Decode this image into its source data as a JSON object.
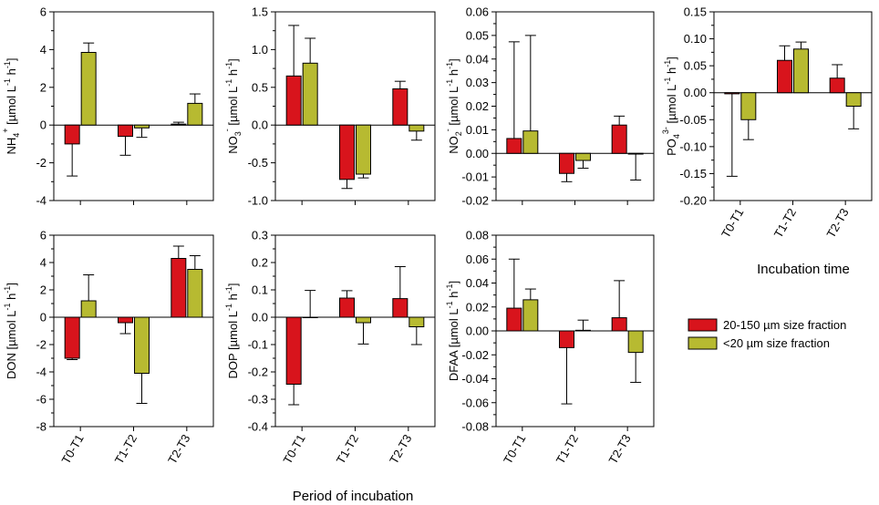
{
  "figure": {
    "xlabel": "Period of incubation",
    "side_xlabel": "Incubation time"
  },
  "legend": {
    "items": [
      {
        "label": "20-150 µm size fraction",
        "color": "#d8141c"
      },
      {
        "label": "<20 µm size fraction",
        "color": "#b7ba31"
      }
    ]
  },
  "colors": {
    "series1": "#d8141c",
    "series2": "#b7ba31",
    "axis": "#000000"
  },
  "chart_data": [
    {
      "id": "nh4",
      "type": "bar",
      "ylabel": {
        "base": "NH",
        "sub": "4",
        "sup": "+",
        "units": " [µmol L",
        "unitsup": "-1",
        "h": " h",
        "hsup": "-1",
        "end": "]"
      },
      "categories": [
        "T0-T1",
        "T1-T2",
        "T2-T3"
      ],
      "ylim": [
        -4,
        6
      ],
      "yticks": [
        -4,
        -2,
        0,
        2,
        4,
        6
      ],
      "series": [
        {
          "name": "20-150 µm size fraction",
          "values": [
            -1.0,
            -0.6,
            0.05
          ],
          "errors": [
            1.7,
            1.0,
            0.1
          ]
        },
        {
          "name": "<20 µm size fraction",
          "values": [
            3.85,
            -0.15,
            1.15
          ],
          "errors": [
            0.5,
            0.5,
            0.5
          ]
        }
      ]
    },
    {
      "id": "no3",
      "type": "bar",
      "ylabel": {
        "base": "NO",
        "sub": "3",
        "sup": "-",
        "units": " [µmol L",
        "unitsup": "-1",
        "h": " h",
        "hsup": "-1",
        "end": "]"
      },
      "categories": [
        "T0-T1",
        "T1-T2",
        "T2-T3"
      ],
      "ylim": [
        -1.0,
        1.5
      ],
      "yticks": [
        -1.0,
        -0.5,
        0.0,
        0.5,
        1.0,
        1.5
      ],
      "series": [
        {
          "name": "20-150 µm size fraction",
          "values": [
            0.65,
            -0.72,
            0.48
          ],
          "errors": [
            0.67,
            0.12,
            0.1
          ]
        },
        {
          "name": "<20 µm size fraction",
          "values": [
            0.82,
            -0.65,
            -0.08
          ],
          "errors": [
            0.33,
            0.05,
            0.12
          ]
        }
      ]
    },
    {
      "id": "no2",
      "type": "bar",
      "ylabel": {
        "base": "NO",
        "sub": "2",
        "sup": "-",
        "units": " [µmol L",
        "unitsup": "-1",
        "h": " h",
        "hsup": "-1",
        "end": "]"
      },
      "categories": [
        "T0-T1",
        "T1-T2",
        "T2-T3"
      ],
      "ylim": [
        -0.02,
        0.06
      ],
      "yticks": [
        -0.02,
        -0.01,
        0.0,
        0.01,
        0.02,
        0.03,
        0.04,
        0.05,
        0.06
      ],
      "series": [
        {
          "name": "20-150 µm size fraction",
          "values": [
            0.0063,
            -0.0085,
            0.012
          ],
          "errors": [
            0.041,
            0.0035,
            0.0038
          ]
        },
        {
          "name": "<20 µm size fraction",
          "values": [
            0.0095,
            -0.003,
            -0.0003
          ],
          "errors": [
            0.0405,
            0.0033,
            0.011
          ]
        }
      ]
    },
    {
      "id": "po4",
      "type": "bar",
      "ylabel": {
        "base": "PO",
        "sub": "4",
        "sup": "3-",
        "units": " [µmol L",
        "unitsup": "-1",
        "h": " h",
        "hsup": "-1",
        "end": "]"
      },
      "categories": [
        "T0-T1",
        "T1-T2",
        "T2-T3"
      ],
      "ylim": [
        -0.2,
        0.15
      ],
      "yticks": [
        -0.2,
        -0.15,
        -0.1,
        -0.05,
        0.0,
        0.05,
        0.1,
        0.15
      ],
      "series": [
        {
          "name": "20-150 µm size fraction",
          "values": [
            -0.002,
            0.06,
            0.027
          ],
          "errors": [
            0.153,
            0.027,
            0.025
          ]
        },
        {
          "name": "<20 µm size fraction",
          "values": [
            -0.05,
            0.081,
            -0.025
          ],
          "errors": [
            0.037,
            0.013,
            0.042
          ]
        }
      ]
    },
    {
      "id": "don",
      "type": "bar",
      "ylabel": {
        "base": "DON",
        "sub": "",
        "sup": "",
        "units": " [µmol L",
        "unitsup": "-1",
        "h": " h",
        "hsup": "-1",
        "end": "]"
      },
      "categories": [
        "T0-T1",
        "T1-T2",
        "T2-T3"
      ],
      "ylim": [
        -8,
        6
      ],
      "yticks": [
        -8,
        -6,
        -4,
        -2,
        0,
        2,
        4,
        6
      ],
      "series": [
        {
          "name": "20-150 µm size fraction",
          "values": [
            -3.0,
            -0.4,
            4.3
          ],
          "errors": [
            0.1,
            0.8,
            0.9
          ]
        },
        {
          "name": "<20 µm size fraction",
          "values": [
            1.2,
            -4.1,
            3.5
          ],
          "errors": [
            1.9,
            2.2,
            1.0
          ]
        }
      ]
    },
    {
      "id": "dop",
      "type": "bar",
      "ylabel": {
        "base": "DOP",
        "sub": "",
        "sup": "",
        "units": " [µmol L",
        "unitsup": "-1",
        "h": " h",
        "hsup": "-1",
        "end": "]"
      },
      "categories": [
        "T0-T1",
        "T1-T2",
        "T2-T3"
      ],
      "ylim": [
        -0.4,
        0.3
      ],
      "yticks": [
        -0.4,
        -0.3,
        -0.2,
        -0.1,
        0.0,
        0.1,
        0.2,
        0.3
      ],
      "series": [
        {
          "name": "20-150 µm size fraction",
          "values": [
            -0.245,
            0.07,
            0.068
          ],
          "errors": [
            0.075,
            0.027,
            0.117
          ]
        },
        {
          "name": "<20 µm size fraction",
          "values": [
            0.0,
            -0.02,
            -0.035
          ],
          "errors": [
            0.098,
            0.078,
            0.065
          ]
        }
      ]
    },
    {
      "id": "dfaa",
      "type": "bar",
      "ylabel": {
        "base": "DFAA",
        "sub": "",
        "sup": "",
        "units": " [µmol L",
        "unitsup": "-1",
        "h": " h",
        "hsup": "-1",
        "end": "]"
      },
      "categories": [
        "T0-T1",
        "T1-T2",
        "T2-T3"
      ],
      "ylim": [
        -0.08,
        0.08
      ],
      "yticks": [
        -0.08,
        -0.06,
        -0.04,
        -0.02,
        0.0,
        0.02,
        0.04,
        0.06,
        0.08
      ],
      "series": [
        {
          "name": "20-150 µm size fraction",
          "values": [
            0.019,
            -0.014,
            0.011
          ],
          "errors": [
            0.041,
            0.047,
            0.031
          ]
        },
        {
          "name": "<20 µm size fraction",
          "values": [
            0.026,
            0.0005,
            -0.018
          ],
          "errors": [
            0.009,
            0.0085,
            0.025
          ]
        }
      ]
    }
  ]
}
